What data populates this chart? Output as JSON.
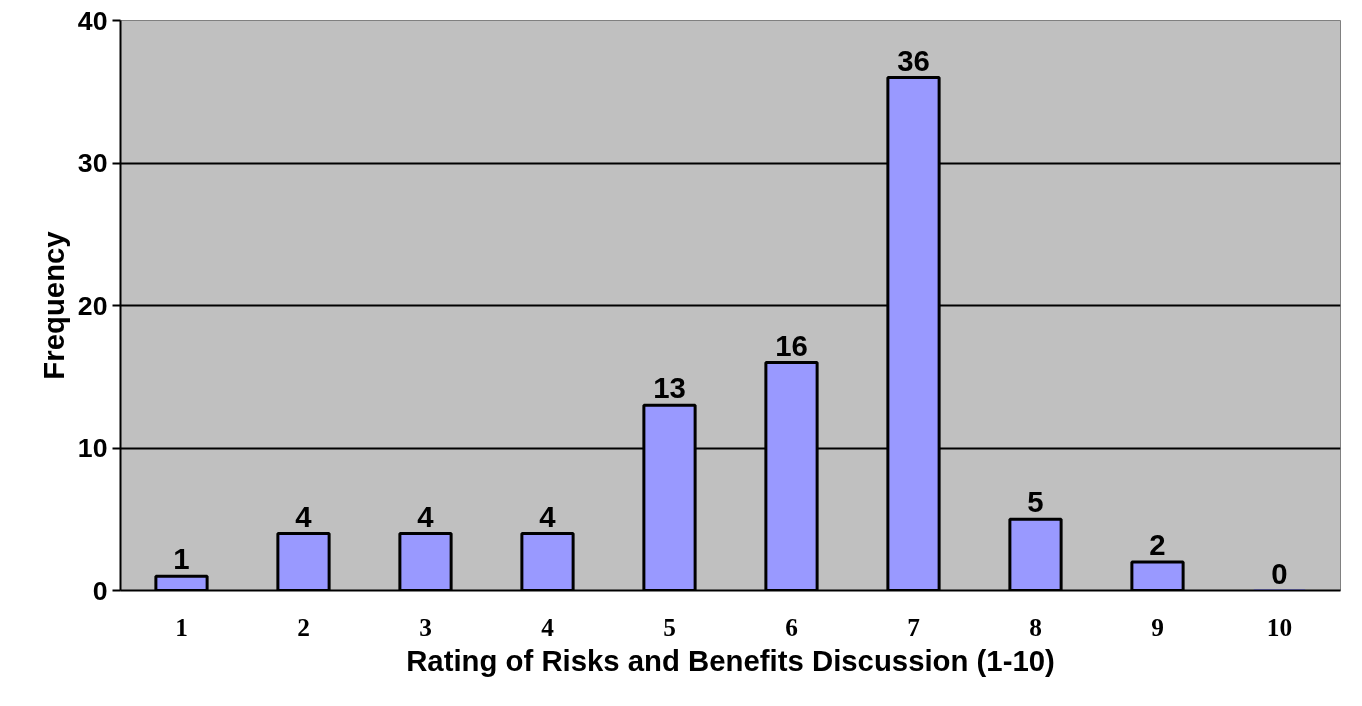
{
  "chart_data": {
    "type": "bar",
    "xlabel": "Rating of Risks and Benefits Discussion (1-10)",
    "ylabel": "Frequency",
    "categories": [
      "1",
      "2",
      "3",
      "4",
      "5",
      "6",
      "7",
      "8",
      "9",
      "10"
    ],
    "values": [
      1,
      4,
      4,
      4,
      13,
      16,
      36,
      5,
      2,
      0
    ],
    "color": "#9999ff",
    "ylim": [
      0,
      40
    ],
    "yticks": [
      0,
      10,
      20,
      30,
      40
    ],
    "grid": "y",
    "data_labels": true
  }
}
